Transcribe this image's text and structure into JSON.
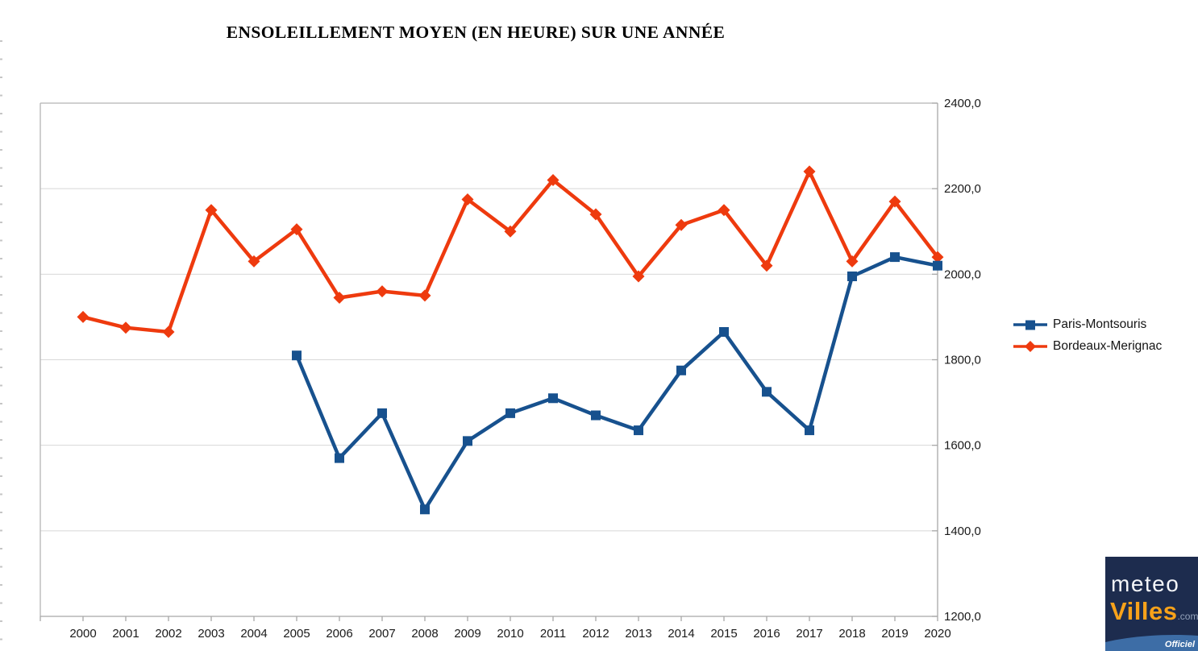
{
  "title": "ENSOLEILLEMENT MOYEN (EN HEURE) SUR UNE ANNÉE",
  "chart_data": {
    "type": "line",
    "x": [
      2000,
      2001,
      2002,
      2003,
      2004,
      2005,
      2006,
      2007,
      2008,
      2009,
      2010,
      2011,
      2012,
      2013,
      2014,
      2015,
      2016,
      2017,
      2018,
      2019,
      2020
    ],
    "x_tick_labels": [
      "2000",
      "2001",
      "2002",
      "2003",
      "2004",
      "2005",
      "2006",
      "2007",
      "2008",
      "2009",
      "2010",
      "2011",
      "2012",
      "2013",
      "2014",
      "2015",
      "2016",
      "2017",
      "2018",
      "2019",
      "2020"
    ],
    "series": [
      {
        "name": "Paris-Montsouris",
        "color": "#17518e",
        "marker": "square",
        "values": [
          null,
          null,
          null,
          null,
          null,
          1810,
          1570,
          1675,
          1450,
          1610,
          1675,
          1710,
          1670,
          1635,
          1775,
          1865,
          1725,
          1635,
          1995,
          2040,
          2020
        ]
      },
      {
        "name": "Bordeaux-Merignac",
        "color": "#ee3a0e",
        "marker": "diamond",
        "values": [
          1900,
          1875,
          1865,
          2150,
          2030,
          2105,
          1945,
          1960,
          1950,
          2175,
          2100,
          2220,
          2140,
          1995,
          2115,
          2150,
          2020,
          2240,
          2030,
          2170,
          2040
        ]
      }
    ],
    "ylim": [
      1200,
      2400
    ],
    "y_tick_step": 200,
    "y_tick_labels": [
      "1200,0",
      "1400,0",
      "1600,0",
      "1800,0",
      "2000,0",
      "2200,0",
      "2400,0"
    ],
    "yaxis_side": "right",
    "grid": "horizontal",
    "legend_position": "right",
    "xlabel": "",
    "ylabel": ""
  },
  "colors": {
    "gridline": "#d8d8d8",
    "frame": "#b5b5b5",
    "axis": "#a8a8a8",
    "tick_text": "#1a1a1a"
  },
  "logo": {
    "line1": "meteo",
    "line2": "Villes",
    "suffix": ".com",
    "badge": "Officiel",
    "background": "#1d2c4e",
    "accent": "#f7a21a",
    "band": "#3d6da6"
  }
}
